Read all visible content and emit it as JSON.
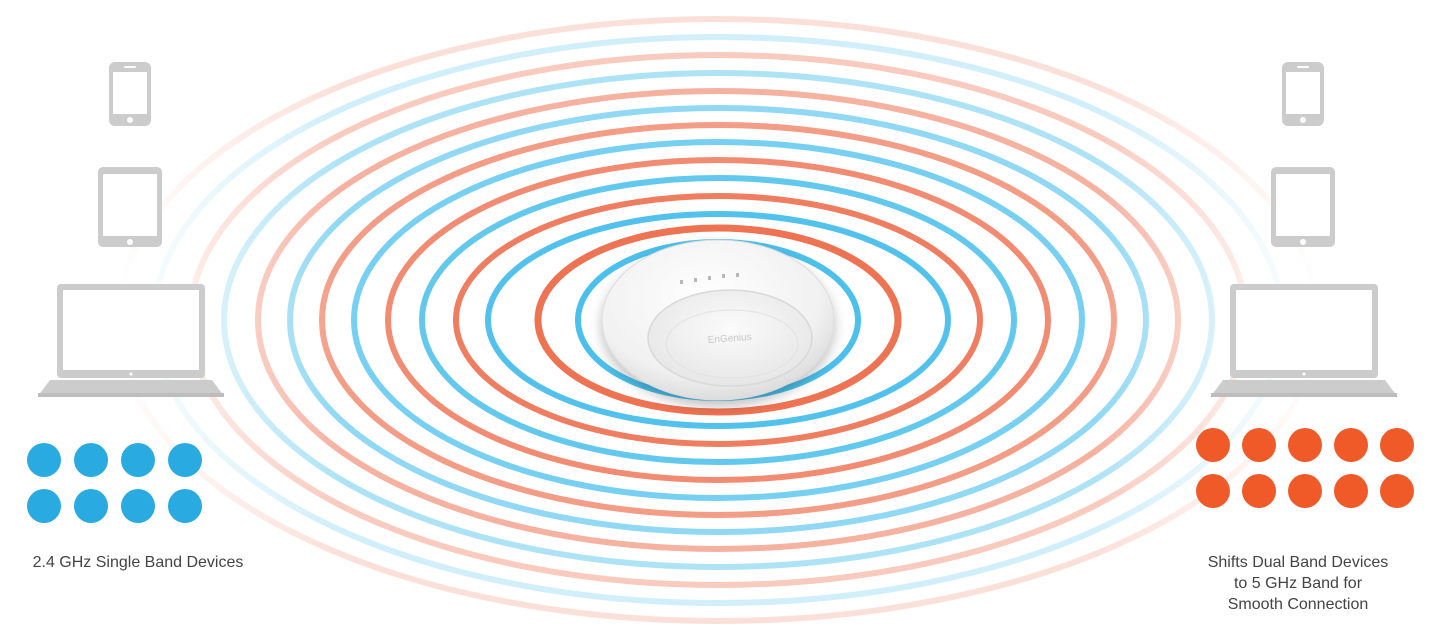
{
  "colors": {
    "band_24": "#29abe2",
    "band_5": "#f05a28",
    "ring_blue": "#4cc0ec",
    "ring_red": "#ee7353",
    "device_gray": "#cccccc",
    "device_dark": "#bdbdbd",
    "background": "#ffffff"
  },
  "access_point": {
    "icon": "ceiling-access-point-icon",
    "logo_text": "EnGenius"
  },
  "left_group": {
    "devices": [
      "smartphone-icon",
      "tablet-icon",
      "laptop-icon"
    ],
    "dot_color": "#29abe2",
    "dot_count": 8,
    "caption": "2.4 GHz Single Band Devices"
  },
  "right_group": {
    "devices": [
      "smartphone-icon",
      "tablet-icon",
      "laptop-icon"
    ],
    "dot_color": "#f05a28",
    "dot_count": 10,
    "caption_lines": [
      "Shifts Dual Band Devices",
      "to 5 GHz Band for",
      "Smooth Connection"
    ]
  }
}
